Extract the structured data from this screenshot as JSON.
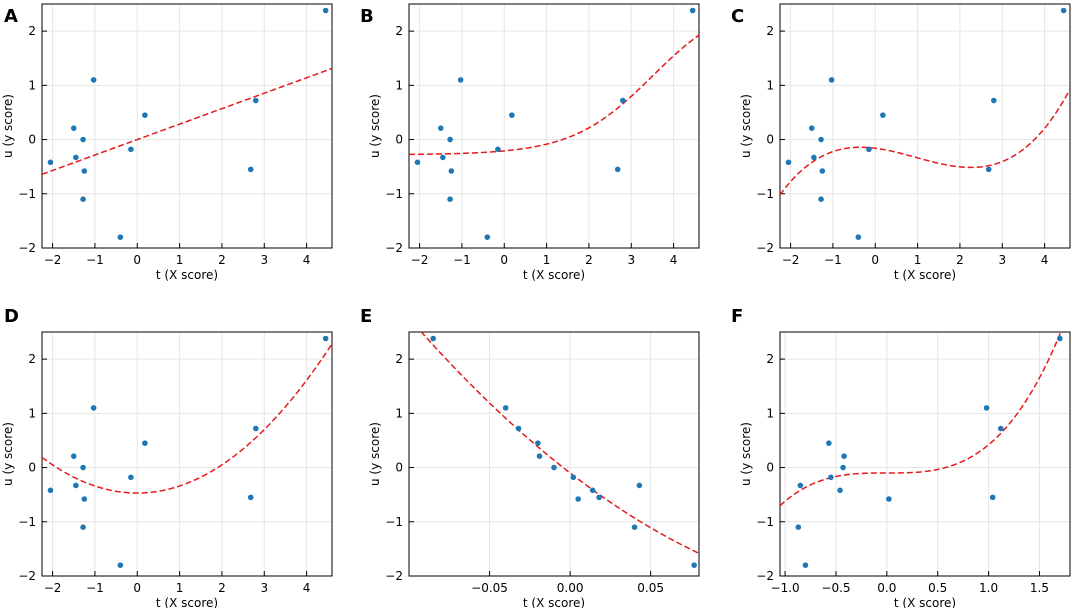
{
  "chart_data": [
    {
      "type": "scatter",
      "panel": "A",
      "title": "",
      "xlabel": "t (X score)",
      "ylabel": "u (y score)",
      "xlim": [
        -2.25,
        4.6
      ],
      "ylim": [
        -2.0,
        2.5
      ],
      "xticks": [
        -2,
        -1,
        0,
        1,
        2,
        3,
        4
      ],
      "yticks": [
        -2,
        -1,
        0,
        1,
        2
      ],
      "xtick_labels": [
        "−2",
        "−1",
        "0",
        "1",
        "2",
        "3",
        "4"
      ],
      "ytick_labels": [
        "−2",
        "−1",
        "0",
        "1",
        "2"
      ],
      "grid": true,
      "points": {
        "x": [
          -2.05,
          -1.5,
          -1.45,
          -1.28,
          -1.25,
          -1.28,
          -1.03,
          -0.4,
          -0.15,
          0.18,
          2.68,
          2.8,
          4.45
        ],
        "y": [
          -0.42,
          0.21,
          -0.33,
          0.0,
          -0.58,
          -1.1,
          1.1,
          -1.8,
          -0.18,
          0.45,
          -0.55,
          0.72,
          2.38
        ]
      },
      "fit": {
        "kind": "poly",
        "degree": 1,
        "coeffs": [
          0.0,
          0.285
        ]
      }
    },
    {
      "type": "scatter",
      "panel": "B",
      "title": "",
      "xlabel": "t (X score)",
      "ylabel": "u (y score)",
      "xlim": [
        -2.25,
        4.6
      ],
      "ylim": [
        -2.0,
        2.5
      ],
      "xticks": [
        -2,
        -1,
        0,
        1,
        2,
        3,
        4
      ],
      "yticks": [
        -2,
        -1,
        0,
        1,
        2
      ],
      "xtick_labels": [
        "−2",
        "−1",
        "0",
        "1",
        "2",
        "3",
        "4"
      ],
      "ytick_labels": [
        "−2",
        "−1",
        "0",
        "1",
        "2"
      ],
      "grid": true,
      "points": {
        "x": [
          -2.05,
          -1.5,
          -1.45,
          -1.28,
          -1.25,
          -1.28,
          -1.03,
          -0.4,
          -0.15,
          0.18,
          2.68,
          2.8,
          4.45
        ],
        "y": [
          -0.42,
          0.21,
          -0.33,
          0.0,
          -0.58,
          -1.1,
          1.1,
          -1.8,
          -0.18,
          0.45,
          -0.55,
          0.72,
          2.38
        ]
      },
      "fit": {
        "kind": "sigmoid",
        "A": -0.28,
        "K": 2.9,
        "x0": 3.5,
        "s": 0.95
      }
    },
    {
      "type": "scatter",
      "panel": "C",
      "title": "",
      "xlabel": "t (X score)",
      "ylabel": "u (y score)",
      "xlim": [
        -2.25,
        4.6
      ],
      "ylim": [
        -2.0,
        2.5
      ],
      "xticks": [
        -2,
        -1,
        0,
        1,
        2,
        3,
        4
      ],
      "yticks": [
        -2,
        -1,
        0,
        1,
        2
      ],
      "xtick_labels": [
        "−2",
        "−1",
        "0",
        "1",
        "2",
        "3",
        "4"
      ],
      "ytick_labels": [
        "−2",
        "−1",
        "0",
        "1",
        "2"
      ],
      "grid": true,
      "points": {
        "x": [
          -2.05,
          -1.5,
          -1.45,
          -1.28,
          -1.25,
          -1.28,
          -1.03,
          -0.4,
          -0.15,
          0.18,
          2.68,
          2.8,
          4.45
        ],
        "y": [
          -0.42,
          0.21,
          -0.33,
          0.0,
          -0.58,
          -1.1,
          1.1,
          -1.8,
          -0.18,
          0.45,
          -0.55,
          0.72,
          2.38
        ]
      },
      "fit": {
        "kind": "poly",
        "degree": 3,
        "coeffs": [
          -0.16,
          -0.1,
          -0.12,
          0.042
        ]
      }
    },
    {
      "type": "scatter",
      "panel": "D",
      "title": "",
      "xlabel": "t (X score)",
      "ylabel": "u (y score)",
      "xlim": [
        -2.25,
        4.6
      ],
      "ylim": [
        -2.0,
        2.5
      ],
      "xticks": [
        -2,
        -1,
        0,
        1,
        2,
        3,
        4
      ],
      "yticks": [
        -2,
        -1,
        0,
        1,
        2
      ],
      "xtick_labels": [
        "−2",
        "−1",
        "0",
        "1",
        "2",
        "3",
        "4"
      ],
      "ytick_labels": [
        "−2",
        "−1",
        "0",
        "1",
        "2"
      ],
      "grid": true,
      "points": {
        "x": [
          -2.05,
          -1.5,
          -1.45,
          -1.28,
          -1.25,
          -1.28,
          -1.03,
          -0.4,
          -0.15,
          0.18,
          2.68,
          2.8,
          4.45
        ],
        "y": [
          -0.42,
          0.21,
          -0.33,
          0.0,
          -0.58,
          -1.1,
          1.1,
          -1.8,
          -0.18,
          0.45,
          -0.55,
          0.72,
          2.38
        ]
      },
      "fit": {
        "kind": "poly",
        "degree": 2,
        "coeffs": [
          -0.47,
          0.0,
          0.13
        ]
      }
    },
    {
      "type": "scatter",
      "panel": "E",
      "title": "",
      "xlabel": "t (X score)",
      "ylabel": "u (y score)",
      "xlim": [
        -0.1,
        0.08
      ],
      "ylim": [
        -2.0,
        2.5
      ],
      "xticks": [
        -0.05,
        0.0,
        0.05
      ],
      "yticks": [
        -2,
        -1,
        0,
        1,
        2
      ],
      "xtick_labels": [
        "−0.05",
        "0.00",
        "0.05"
      ],
      "ytick_labels": [
        "−2",
        "−1",
        "0",
        "1",
        "2"
      ],
      "grid": true,
      "points": {
        "x": [
          -0.085,
          -0.04,
          -0.032,
          -0.02,
          -0.019,
          -0.01,
          0.002,
          0.005,
          0.014,
          0.018,
          0.04,
          0.043,
          0.077
        ],
        "y": [
          2.38,
          1.1,
          0.72,
          0.45,
          0.21,
          0.0,
          -0.18,
          -0.58,
          -0.42,
          -0.55,
          -1.1,
          -0.33,
          -1.8
        ]
      },
      "fit": {
        "kind": "poly",
        "degree": 2,
        "coeffs": [
          -0.1,
          -23.0,
          56.0
        ]
      }
    },
    {
      "type": "scatter",
      "panel": "F",
      "title": "",
      "xlabel": "t (X score)",
      "ylabel": "u (y score)",
      "xlim": [
        -1.05,
        1.8
      ],
      "ylim": [
        -2.0,
        2.5
      ],
      "xticks": [
        -1.0,
        -0.5,
        0.0,
        0.5,
        1.0,
        1.5
      ],
      "yticks": [
        -2,
        -1,
        0,
        1,
        2
      ],
      "xtick_labels": [
        "−1.0",
        "−0.5",
        "0.0",
        "0.5",
        "1.0",
        "1.5"
      ],
      "ytick_labels": [
        "−2",
        "−1",
        "0",
        "1",
        "2"
      ],
      "grid": true,
      "points": {
        "x": [
          -0.87,
          -0.85,
          -0.8,
          -0.57,
          -0.55,
          -0.46,
          -0.43,
          -0.42,
          0.02,
          0.98,
          1.04,
          1.12,
          1.7
        ],
        "y": [
          -1.1,
          -0.33,
          -1.8,
          0.45,
          -0.18,
          -0.42,
          0.0,
          0.21,
          -0.58,
          1.1,
          -0.55,
          0.72,
          2.38
        ]
      },
      "fit": {
        "kind": "poly",
        "degree": 3,
        "coeffs": [
          -0.1,
          0.0,
          0.0,
          0.52
        ]
      }
    }
  ]
}
